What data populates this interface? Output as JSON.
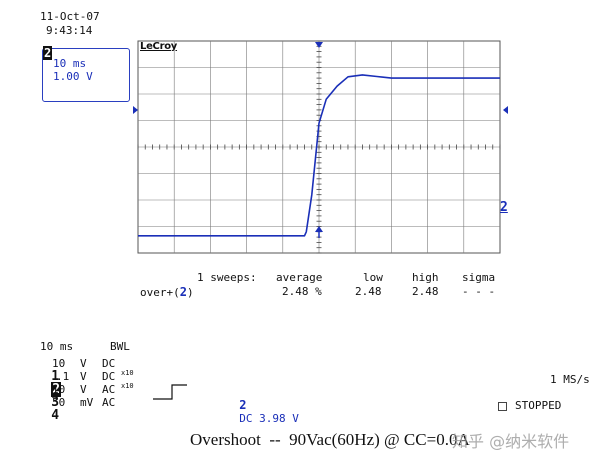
{
  "header": {
    "date": "11-Oct-07",
    "time": "9:43:14"
  },
  "channel_box": {
    "number": "2",
    "timebase": "10 ms",
    "volts": "1.00 V"
  },
  "brand": "LeCroy",
  "trace_label": "2",
  "measurement": {
    "sweeps": "1 sweeps:",
    "headers": [
      "average",
      "low",
      "high",
      "sigma"
    ],
    "param": "over+",
    "channel": "2",
    "values": [
      "2.48 %",
      "2.48",
      "2.48",
      "- - -"
    ]
  },
  "settings": {
    "timebase": "10 ms",
    "bwl": "BWL",
    "channels": [
      {
        "num": "1",
        "value": "10",
        "unit": "V",
        "coupling": "DC",
        "probe": ""
      },
      {
        "num": "2",
        "value": ".1",
        "unit": "V",
        "coupling": "DC",
        "probe": "x10"
      },
      {
        "num": "3",
        "value": "10",
        "unit": "V",
        "coupling": "AC",
        "probe": "x10"
      },
      {
        "num": "4",
        "value": "50",
        "unit": "mV",
        "coupling": "AC",
        "probe": ""
      }
    ]
  },
  "trigger": {
    "channel": "2",
    "text": "DC 3.98 V"
  },
  "sample_rate": "1 MS/s",
  "status": "STOPPED",
  "caption": "Overshoot  --  90Vac(60Hz) @ CC=0.0A",
  "watermark": "知乎 @纳米软件",
  "colors": {
    "trace": "#1a2fb8",
    "grid": "#7a7a7a",
    "text_blue": "#1a2fb8"
  },
  "chart_data": {
    "type": "line",
    "title": "",
    "xlabel": "",
    "ylabel": "",
    "x_divisions": 10,
    "y_divisions": 8,
    "timebase_per_div": "10 ms",
    "volts_per_div": "1.00 V",
    "series": [
      {
        "x": [
          0,
          4.6,
          4.65,
          4.8,
          5.0,
          5.2,
          5.5,
          5.8,
          6.2,
          6.6,
          7.0,
          8.0,
          10.0
        ],
        "y": [
          -3.35,
          -3.35,
          -3.2,
          -1.8,
          0.9,
          1.8,
          2.3,
          2.65,
          2.72,
          2.66,
          2.6,
          2.6,
          2.6
        ]
      }
    ]
  }
}
